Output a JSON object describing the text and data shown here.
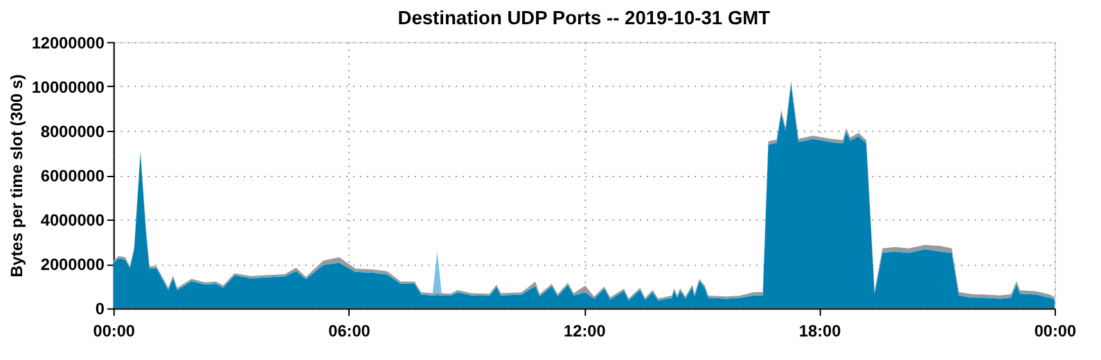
{
  "chart_data": {
    "type": "area",
    "stacked": true,
    "title": "Destination UDP Ports -- 2019-10-31 GMT",
    "ylabel": "Bytes per time slot (300 s)",
    "x": [
      0,
      0.13,
      0.3,
      0.42,
      0.53,
      0.69,
      0.83,
      0.92,
      1.1,
      1.4,
      1.52,
      1.63,
      1.99,
      2.33,
      2.62,
      2.8,
      3.09,
      3.5,
      3.96,
      4.37,
      4.66,
      4.91,
      5.35,
      5.76,
      6.17,
      6.63,
      6.98,
      7.33,
      7.68,
      7.85,
      8.14,
      8.26,
      8.37,
      8.6,
      8.78,
      9.13,
      9.59,
      9.77,
      9.88,
      10.41,
      10.76,
      10.87,
      11.18,
      11.33,
      11.59,
      11.74,
      12.03,
      12.26,
      12.52,
      12.67,
      13.02,
      13.14,
      13.43,
      13.56,
      13.75,
      13.89,
      14.24,
      14.3,
      14.38,
      14.45,
      14.59,
      14.76,
      14.82,
      14.94,
      15.08,
      15.17,
      15.63,
      15.98,
      16.33,
      16.56,
      16.7,
      16.91,
      17.03,
      17.14,
      17.28,
      17.47,
      17.84,
      18.3,
      18.6,
      18.69,
      18.79,
      19.0,
      19.2,
      19.41,
      19.61,
      19.93,
      20.28,
      20.69,
      21.09,
      21.38,
      21.56,
      21.9,
      22.25,
      22.6,
      22.89,
      23.03,
      23.12,
      23.53,
      23.88,
      24
    ],
    "series": [
      {
        "color": "#0080b0",
        "values": [
          2050000,
          2250000,
          2200000,
          1800000,
          2650000,
          7000000,
          3500000,
          1800000,
          1800000,
          820000,
          1370000,
          820000,
          1230000,
          1070000,
          1100000,
          930000,
          1480000,
          1350000,
          1400000,
          1440000,
          1680000,
          1310000,
          1950000,
          2050000,
          1640000,
          1600000,
          1520000,
          1100000,
          1100000,
          620000,
          580000,
          600000,
          580000,
          560000,
          720000,
          580000,
          560000,
          960000,
          580000,
          620000,
          1000000,
          540000,
          1000000,
          540000,
          1050000,
          580000,
          720000,
          430000,
          880000,
          390000,
          780000,
          350000,
          820000,
          370000,
          720000,
          350000,
          470000,
          800000,
          470000,
          800000,
          430000,
          960000,
          540000,
          1230000,
          920000,
          470000,
          430000,
          470000,
          580000,
          580000,
          7380000,
          7450000,
          8780000,
          8000000,
          10100000,
          7490000,
          7630000,
          7490000,
          7430000,
          7960000,
          7550000,
          7750000,
          7430000,
          660000,
          2500000,
          2560000,
          2500000,
          2660000,
          2560000,
          2500000,
          580000,
          480000,
          470000,
          430000,
          480000,
          1070000,
          660000,
          620000,
          470000,
          400000
        ]
      },
      {
        "color": "#9a9a9a",
        "values": [
          100000,
          100000,
          100000,
          100000,
          100000,
          100000,
          100000,
          100000,
          100000,
          100000,
          100000,
          100000,
          100000,
          100000,
          100000,
          100000,
          100000,
          100000,
          100000,
          100000,
          150000,
          100000,
          200000,
          250000,
          150000,
          150000,
          150000,
          100000,
          100000,
          100000,
          100000,
          100000,
          100000,
          100000,
          100000,
          100000,
          100000,
          100000,
          100000,
          100000,
          200000,
          100000,
          100000,
          100000,
          100000,
          100000,
          300000,
          100000,
          100000,
          100000,
          100000,
          100000,
          100000,
          100000,
          100000,
          100000,
          100000,
          100000,
          100000,
          100000,
          100000,
          100000,
          100000,
          100000,
          100000,
          100000,
          100000,
          100000,
          150000,
          150000,
          150000,
          150000,
          150000,
          150000,
          150000,
          150000,
          150000,
          150000,
          150000,
          150000,
          150000,
          150000,
          150000,
          100000,
          200000,
          200000,
          200000,
          200000,
          250000,
          200000,
          150000,
          150000,
          150000,
          150000,
          150000,
          150000,
          150000,
          150000,
          150000,
          100000
        ]
      },
      {
        "color": "#7cc0e6",
        "values": [
          0,
          0,
          0,
          0,
          0,
          0,
          0,
          0,
          0,
          0,
          0,
          0,
          0,
          0,
          0,
          0,
          0,
          0,
          0,
          0,
          0,
          0,
          0,
          0,
          0,
          0,
          0,
          0,
          0,
          0,
          0,
          1850000,
          0,
          0,
          0,
          0,
          0,
          0,
          0,
          0,
          0,
          0,
          0,
          0,
          0,
          0,
          0,
          0,
          0,
          0,
          0,
          0,
          0,
          0,
          0,
          0,
          0,
          0,
          0,
          0,
          0,
          0,
          0,
          0,
          0,
          0,
          0,
          0,
          0,
          0,
          0,
          0,
          0,
          0,
          0,
          0,
          0,
          0,
          0,
          0,
          0,
          0,
          0,
          0,
          0,
          0,
          0,
          0,
          0,
          0,
          0,
          0,
          0,
          0,
          0,
          0,
          0,
          0,
          0,
          0
        ]
      }
    ],
    "xlim": [
      0,
      24
    ],
    "xticks": [
      {
        "value": 0,
        "label": "00:00"
      },
      {
        "value": 6,
        "label": "06:00"
      },
      {
        "value": 12,
        "label": "12:00"
      },
      {
        "value": 18,
        "label": "18:00"
      },
      {
        "value": 24,
        "label": "00:00"
      }
    ],
    "ylim": [
      0,
      12000000
    ],
    "yticks": [
      0,
      2000000,
      4000000,
      6000000,
      8000000,
      10000000,
      12000000
    ],
    "grid": true,
    "legend": false
  }
}
